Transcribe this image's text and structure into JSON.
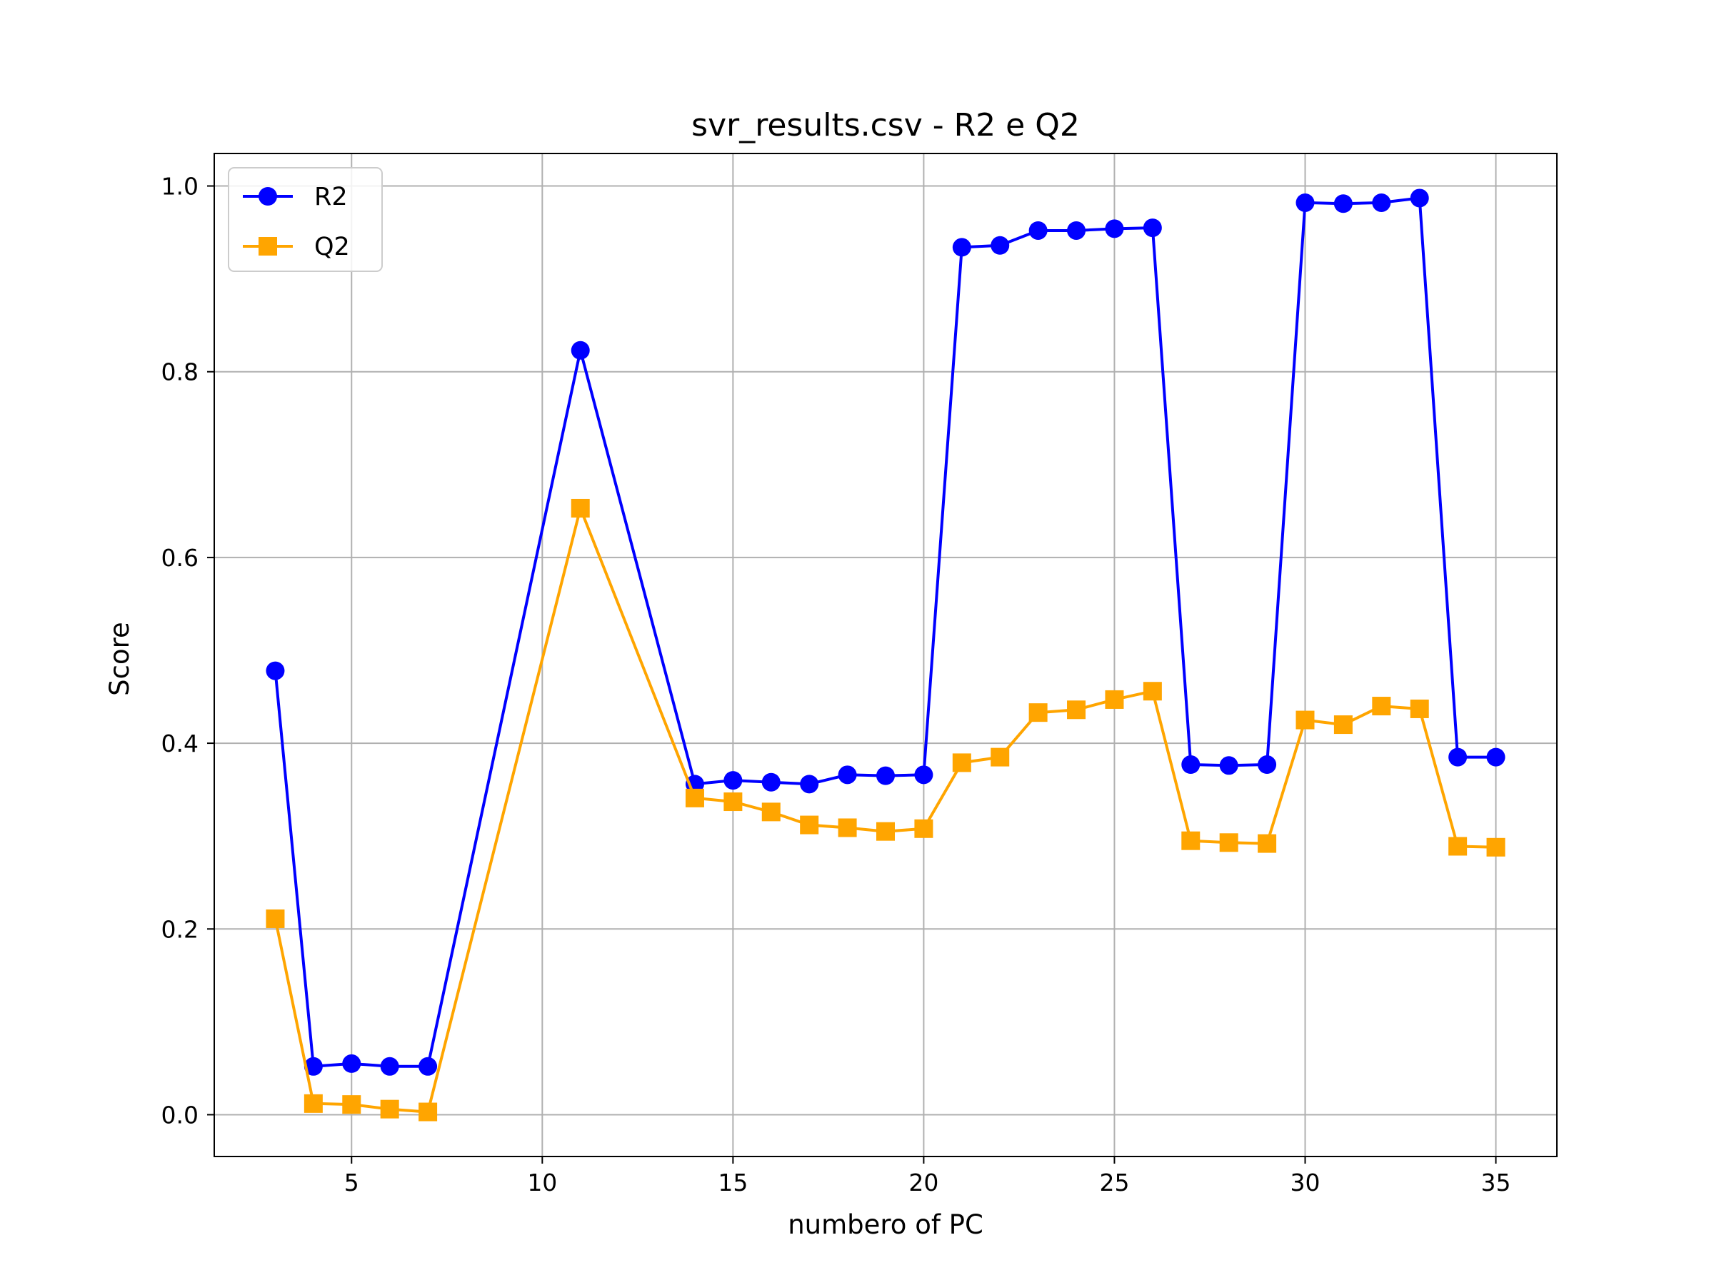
{
  "chart_data": {
    "type": "line",
    "title": "svr_results.csv - R2 e Q2",
    "xlabel": "numbero of PC",
    "ylabel": "Score",
    "xlim": [
      1.4,
      36.6
    ],
    "ylim": [
      -0.045,
      1.035
    ],
    "xticks": [
      5,
      10,
      15,
      20,
      25,
      30,
      35
    ],
    "yticks": [
      0.0,
      0.2,
      0.4,
      0.6,
      0.8,
      1.0
    ],
    "xtick_labels": [
      "5",
      "10",
      "15",
      "20",
      "25",
      "30",
      "35"
    ],
    "ytick_labels": [
      "0.0",
      "0.2",
      "0.4",
      "0.6",
      "0.8",
      "1.0"
    ],
    "grid": true,
    "legend_position": "upper-left",
    "x": [
      3,
      4,
      5,
      6,
      7,
      11,
      14,
      15,
      16,
      17,
      18,
      19,
      20,
      21,
      22,
      23,
      24,
      25,
      26,
      27,
      28,
      29,
      30,
      31,
      32,
      33,
      34,
      35
    ],
    "series": [
      {
        "name": "R2",
        "color": "#0000ff",
        "marker": "circle",
        "values": [
          0.478,
          0.052,
          0.055,
          0.052,
          0.052,
          0.823,
          0.356,
          0.36,
          0.358,
          0.356,
          0.366,
          0.365,
          0.366,
          0.934,
          0.936,
          0.952,
          0.952,
          0.954,
          0.955,
          0.377,
          0.376,
          0.377,
          0.982,
          0.981,
          0.982,
          0.987,
          0.385,
          0.385
        ]
      },
      {
        "name": "Q2",
        "color": "#ffa500",
        "marker": "square",
        "values": [
          0.211,
          0.012,
          0.011,
          0.006,
          0.003,
          0.653,
          0.341,
          0.337,
          0.326,
          0.312,
          0.309,
          0.305,
          0.308,
          0.379,
          0.385,
          0.433,
          0.436,
          0.447,
          0.456,
          0.295,
          0.293,
          0.292,
          0.425,
          0.42,
          0.44,
          0.437,
          0.289,
          0.288
        ]
      }
    ]
  }
}
